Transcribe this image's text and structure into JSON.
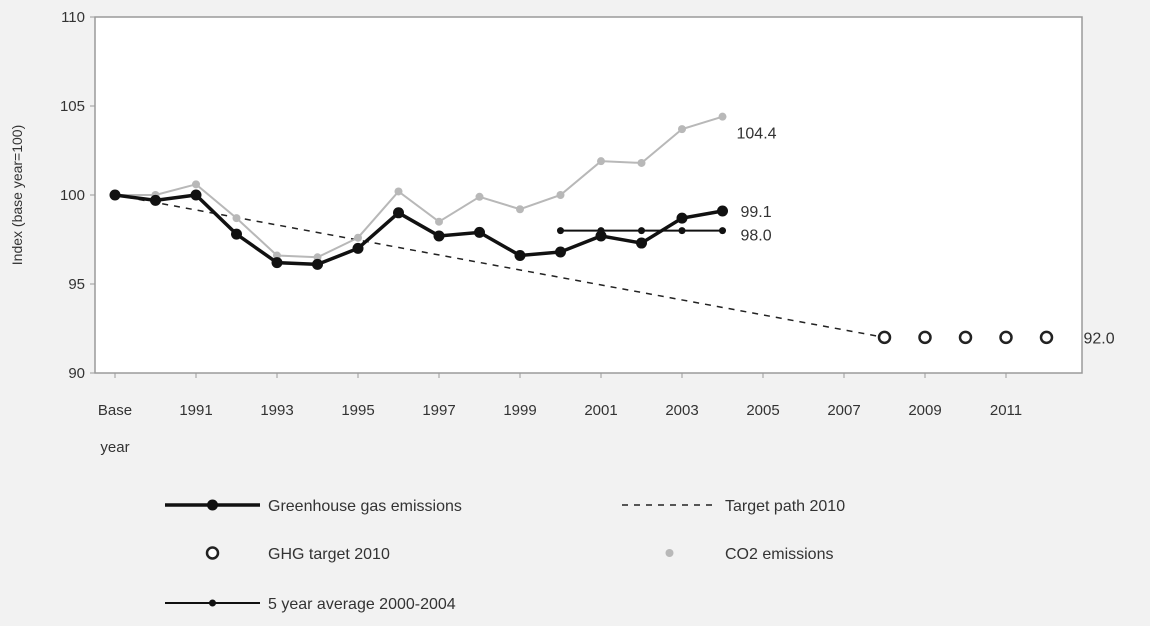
{
  "chart_data": {
    "type": "line",
    "ylabel": "Index (base year=100)",
    "xlabel": "",
    "ylim": [
      90,
      110
    ],
    "y_ticks": [
      "110",
      "105",
      "100",
      "95",
      "90"
    ],
    "x_tick_labels": [
      {
        "x": 0,
        "label": "Base",
        "label2": "year"
      },
      {
        "x": 1991,
        "label": "1991"
      },
      {
        "x": 1993,
        "label": "1993"
      },
      {
        "x": 1995,
        "label": "1995"
      },
      {
        "x": 1997,
        "label": "1997"
      },
      {
        "x": 1999,
        "label": "1999"
      },
      {
        "x": 2001,
        "label": "2001"
      },
      {
        "x": 2003,
        "label": "2003"
      },
      {
        "x": 2005,
        "label": "2005"
      },
      {
        "x": 2007,
        "label": "2007"
      },
      {
        "x": 2009,
        "label": "2009"
      },
      {
        "x": 2011,
        "label": "2011"
      }
    ],
    "categories": [
      "Base year",
      "1990",
      "1991",
      "1992",
      "1993",
      "1994",
      "1995",
      "1996",
      "1997",
      "1998",
      "1999",
      "2000",
      "2001",
      "2002",
      "2003",
      "2004",
      "2005",
      "2006",
      "2007",
      "2008",
      "2009",
      "2010",
      "2011",
      "2012"
    ],
    "series": [
      {
        "name": "Greenhouse gas emissions",
        "style": "solid-thick-dot",
        "color": "#111111",
        "x": [
          "Base year",
          "1990",
          "1991",
          "1992",
          "1993",
          "1994",
          "1995",
          "1996",
          "1997",
          "1998",
          "1999",
          "2000",
          "2001",
          "2002",
          "2003",
          "2004"
        ],
        "values": [
          100.0,
          99.7,
          100.0,
          97.8,
          96.2,
          96.1,
          97.0,
          99.0,
          97.7,
          97.9,
          96.6,
          96.8,
          97.7,
          97.3,
          98.7,
          99.1
        ],
        "end_label": "99.1"
      },
      {
        "name": "Target path 2010",
        "style": "dashed",
        "color": "#222222",
        "x": [
          "Base year",
          "2008"
        ],
        "values": [
          100.0,
          92.0
        ]
      },
      {
        "name": "GHG target 2010",
        "style": "open-circle",
        "color": "#222222",
        "x": [
          "2008",
          "2009",
          "2010",
          "2011",
          "2012"
        ],
        "values": [
          92.0,
          92.0,
          92.0,
          92.0,
          92.0
        ],
        "end_label": "92.0"
      },
      {
        "name": "CO2 emissions",
        "style": "solid-gray-dot",
        "color": "#b8b8b8",
        "x": [
          "Base year",
          "1990",
          "1991",
          "1992",
          "1993",
          "1994",
          "1995",
          "1996",
          "1997",
          "1998",
          "1999",
          "2000",
          "2001",
          "2002",
          "2003",
          "2004"
        ],
        "values": [
          100.0,
          100.0,
          100.6,
          98.7,
          96.6,
          96.5,
          97.6,
          100.2,
          98.5,
          99.9,
          99.2,
          100.0,
          101.9,
          101.8,
          103.7,
          104.4
        ],
        "end_label": "104.4"
      },
      {
        "name": "5 year average 2000-2004",
        "style": "solid-thin-dot",
        "color": "#111111",
        "x": [
          "2000",
          "2001",
          "2002",
          "2003",
          "2004"
        ],
        "values": [
          98.0,
          98.0,
          98.0,
          98.0,
          98.0
        ],
        "end_label": "98.0"
      }
    ],
    "legend_position": "bottom",
    "grid": false
  }
}
